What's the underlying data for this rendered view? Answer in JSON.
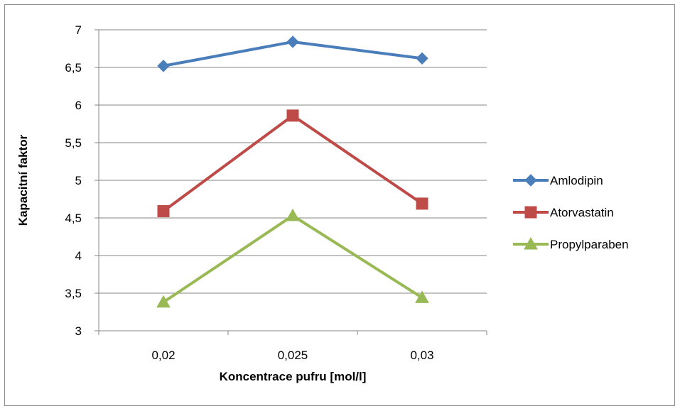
{
  "chart_data": {
    "type": "line",
    "categories": [
      "0,02",
      "0,025",
      "0,03"
    ],
    "series": [
      {
        "name": "Amlodipin",
        "values": [
          6.52,
          6.84,
          6.62
        ],
        "color": "#4a7ebb",
        "marker": "diamond"
      },
      {
        "name": "Atorvastatin",
        "values": [
          4.59,
          5.86,
          4.69
        ],
        "color": "#be4b48",
        "marker": "square"
      },
      {
        "name": "Propylparaben",
        "values": [
          3.38,
          4.53,
          3.44
        ],
        "color": "#98b954",
        "marker": "triangle"
      }
    ],
    "xlabel": "Koncentrace pufru [mol/l]",
    "ylabel": "Kapacitní faktor",
    "ylim": [
      3,
      7
    ],
    "yticks": [
      3,
      3.5,
      4,
      4.5,
      5,
      5.5,
      6,
      6.5,
      7
    ],
    "ytick_labels": [
      "3",
      "3,5",
      "4",
      "4,5",
      "5",
      "5,5",
      "6",
      "6,5",
      "7"
    ],
    "grid": true,
    "legend_position": "right"
  }
}
